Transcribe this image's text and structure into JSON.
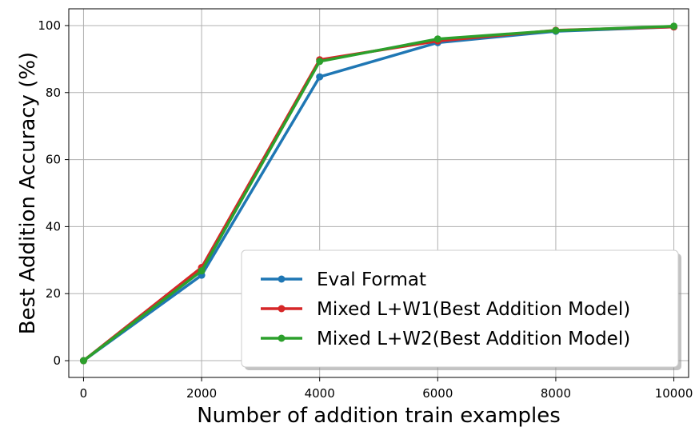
{
  "chart_data": {
    "type": "line",
    "title": "",
    "xlabel": "Number of addition train examples",
    "ylabel": "Best Addition Accuracy (%)",
    "xlim": [
      -250,
      10250
    ],
    "ylim": [
      -5,
      105
    ],
    "xticks": [
      0,
      2000,
      4000,
      6000,
      8000,
      10000
    ],
    "xtick_labels": [
      "0",
      "2000",
      "4000",
      "6000",
      "8000",
      "10000"
    ],
    "yticks": [
      0,
      20,
      40,
      60,
      80,
      100
    ],
    "ytick_labels": [
      "0",
      "20",
      "40",
      "60",
      "80",
      "100"
    ],
    "grid": true,
    "legend_position": "lower-right",
    "x": [
      0,
      2000,
      4000,
      6000,
      8000,
      10000
    ],
    "series": [
      {
        "name": "Eval Format",
        "color": "#1f77b4",
        "values": [
          0,
          25.5,
          84.7,
          94.9,
          98.3,
          99.6
        ]
      },
      {
        "name": "Mixed L+W1(Best Addition Model)",
        "color": "#d62728",
        "values": [
          0,
          27.8,
          89.8,
          95.4,
          98.6,
          99.6
        ]
      },
      {
        "name": "Mixed L+W2(Best Addition Model)",
        "color": "#2ca02c",
        "values": [
          0,
          26.8,
          89.3,
          96.0,
          98.5,
          99.8
        ]
      }
    ]
  }
}
